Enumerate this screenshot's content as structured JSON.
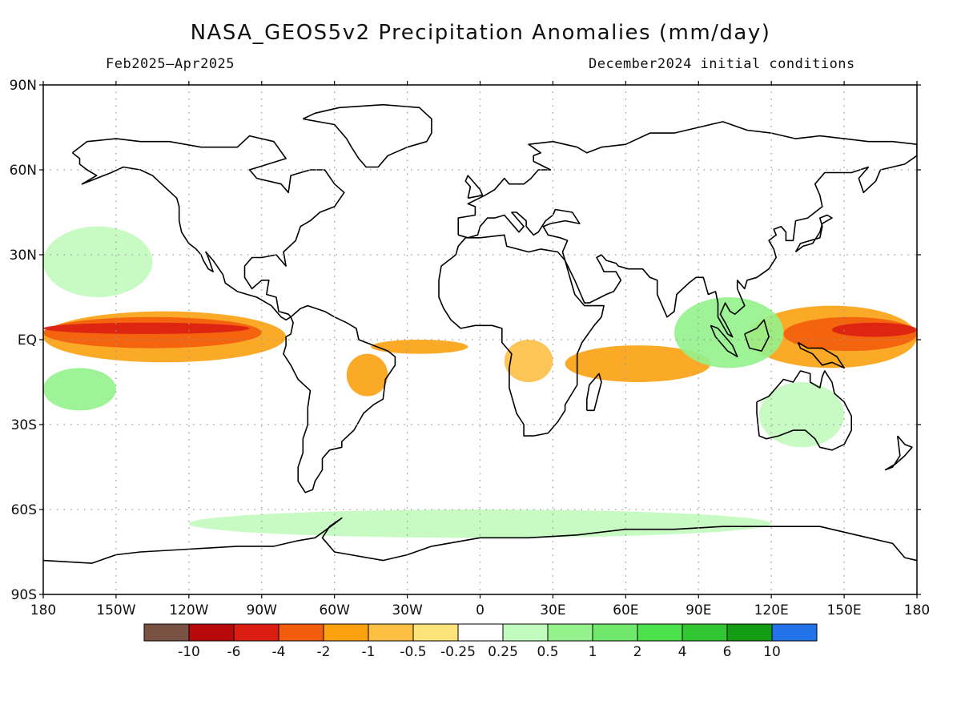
{
  "map": {
    "title": "NASA_GEOS5v2 Precipitation Anomalies (mm/day)",
    "period": "Feb2025–Apr2025",
    "initial_conditions": "December2024 initial conditions",
    "lat_labels": [
      "90N",
      "60N",
      "30N",
      "EQ",
      "30S",
      "60S",
      "90S"
    ],
    "lat_values": [
      90,
      60,
      30,
      0,
      -30,
      -60,
      -90
    ],
    "lon_labels": [
      "180",
      "150W",
      "120W",
      "90W",
      "60W",
      "30W",
      "0",
      "30E",
      "60E",
      "90E",
      "120E",
      "150E",
      "180"
    ],
    "lon_values": [
      -180,
      -150,
      -120,
      -90,
      -60,
      -30,
      0,
      30,
      60,
      90,
      120,
      150,
      180
    ],
    "colors": {
      "land_outline": "#000000",
      "grid": "#9a9a9a"
    }
  },
  "colorbar": {
    "colors": [
      "#7a5244",
      "#b80a0a",
      "#dc1e12",
      "#f35c0c",
      "#fba110",
      "#fcbf42",
      "#fde47a",
      "#ffffff",
      "#c2fbbe",
      "#93f28c",
      "#70e86c",
      "#4ce24c",
      "#33c633",
      "#129d12",
      "#2272ea"
    ],
    "labels": [
      "-10",
      "-6",
      "-4",
      "-2",
      "-1",
      "-0.5",
      "-0.25",
      "0.25",
      "0.5",
      "1",
      "2",
      "4",
      "6",
      "10"
    ]
  },
  "anomaly_regions": [
    {
      "name": "tropical-pacific-dry-core",
      "level": -4,
      "lon": [
        -180,
        -95
      ],
      "lat": [
        2,
        6
      ]
    },
    {
      "name": "tropical-pacific-dry",
      "level": -2,
      "lon": [
        -180,
        -90
      ],
      "lat": [
        -3,
        8
      ]
    },
    {
      "name": "tropical-pacific-dry-wide",
      "level": -1,
      "lon": [
        -180,
        -80
      ],
      "lat": [
        -8,
        10
      ]
    },
    {
      "name": "west-pacific-dry-core",
      "level": -4,
      "lon": [
        145,
        180
      ],
      "lat": [
        1,
        6
      ]
    },
    {
      "name": "west-pacific-dry",
      "level": -2,
      "lon": [
        125,
        180
      ],
      "lat": [
        -4,
        8
      ]
    },
    {
      "name": "west-pacific-dry-wide",
      "level": -1,
      "lon": [
        110,
        180
      ],
      "lat": [
        -10,
        12
      ]
    },
    {
      "name": "indian-ocean-dry",
      "level": -1,
      "lon": [
        35,
        95
      ],
      "lat": [
        -15,
        -2
      ]
    },
    {
      "name": "atlantic-itcz-dry",
      "level": -1,
      "lon": [
        -45,
        -5
      ],
      "lat": [
        -5,
        0
      ]
    },
    {
      "name": "south-pacific-wet",
      "level": 1,
      "lon": [
        -180,
        -150
      ],
      "lat": [
        -25,
        -10
      ]
    },
    {
      "name": "maritime-wet",
      "level": 1,
      "lon": [
        80,
        125
      ],
      "lat": [
        -10,
        15
      ]
    },
    {
      "name": "australia-wet",
      "level": 0.5,
      "lon": [
        115,
        150
      ],
      "lat": [
        -38,
        -15
      ]
    },
    {
      "name": "north-pacific-wet",
      "level": 0.5,
      "lon": [
        -180,
        -135
      ],
      "lat": [
        15,
        40
      ]
    },
    {
      "name": "southern-ocean-wet",
      "level": 0.5,
      "lon": [
        -120,
        120
      ],
      "lat": [
        -70,
        -60
      ]
    },
    {
      "name": "south-america-dry",
      "level": -1,
      "lon": [
        -55,
        -38
      ],
      "lat": [
        -20,
        -5
      ]
    },
    {
      "name": "africa-dry",
      "level": -0.5,
      "lon": [
        10,
        30
      ],
      "lat": [
        -15,
        0
      ]
    }
  ]
}
